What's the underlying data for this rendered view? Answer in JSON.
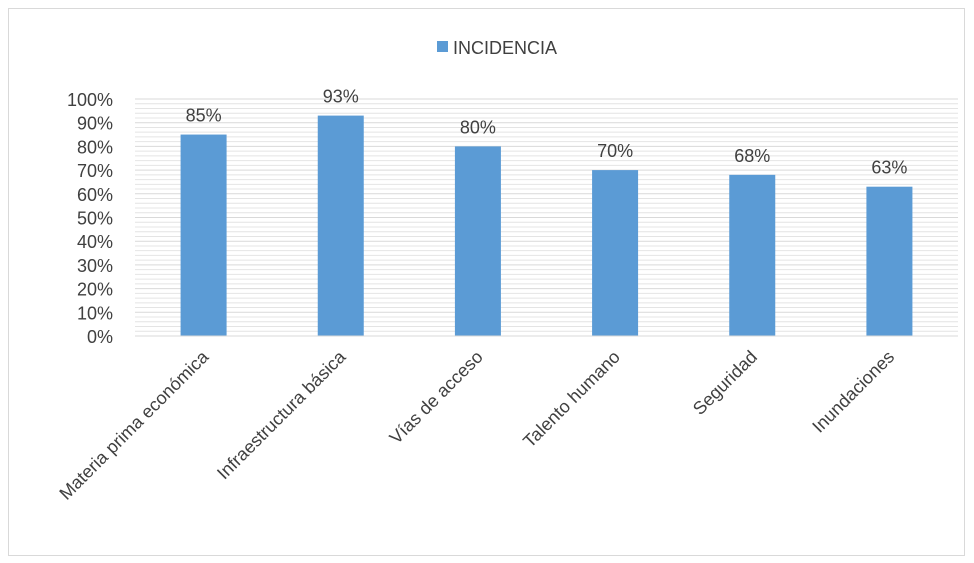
{
  "chart_data": {
    "type": "bar",
    "categories": [
      "Materia prima económica",
      "Infraestructura básica",
      "Vías de acceso",
      "Talento humano",
      "Seguridad",
      "Inundaciones"
    ],
    "series": [
      {
        "name": "INCIDENCIA",
        "values": [
          85,
          93,
          80,
          70,
          68,
          63
        ],
        "labels": [
          "85%",
          "93%",
          "80%",
          "70%",
          "68%",
          "63%"
        ]
      }
    ],
    "y_ticks": [
      "0%",
      "10%",
      "20%",
      "30%",
      "40%",
      "50%",
      "60%",
      "70%",
      "80%",
      "90%",
      "100%"
    ],
    "ylim": [
      0,
      100
    ],
    "y_unit": "%",
    "grid": true,
    "legend_position": "top",
    "colors": {
      "bar": "#5b9bd5",
      "grid": "#e4e4e4",
      "text": "#404040",
      "border": "#d9d9d9"
    }
  }
}
